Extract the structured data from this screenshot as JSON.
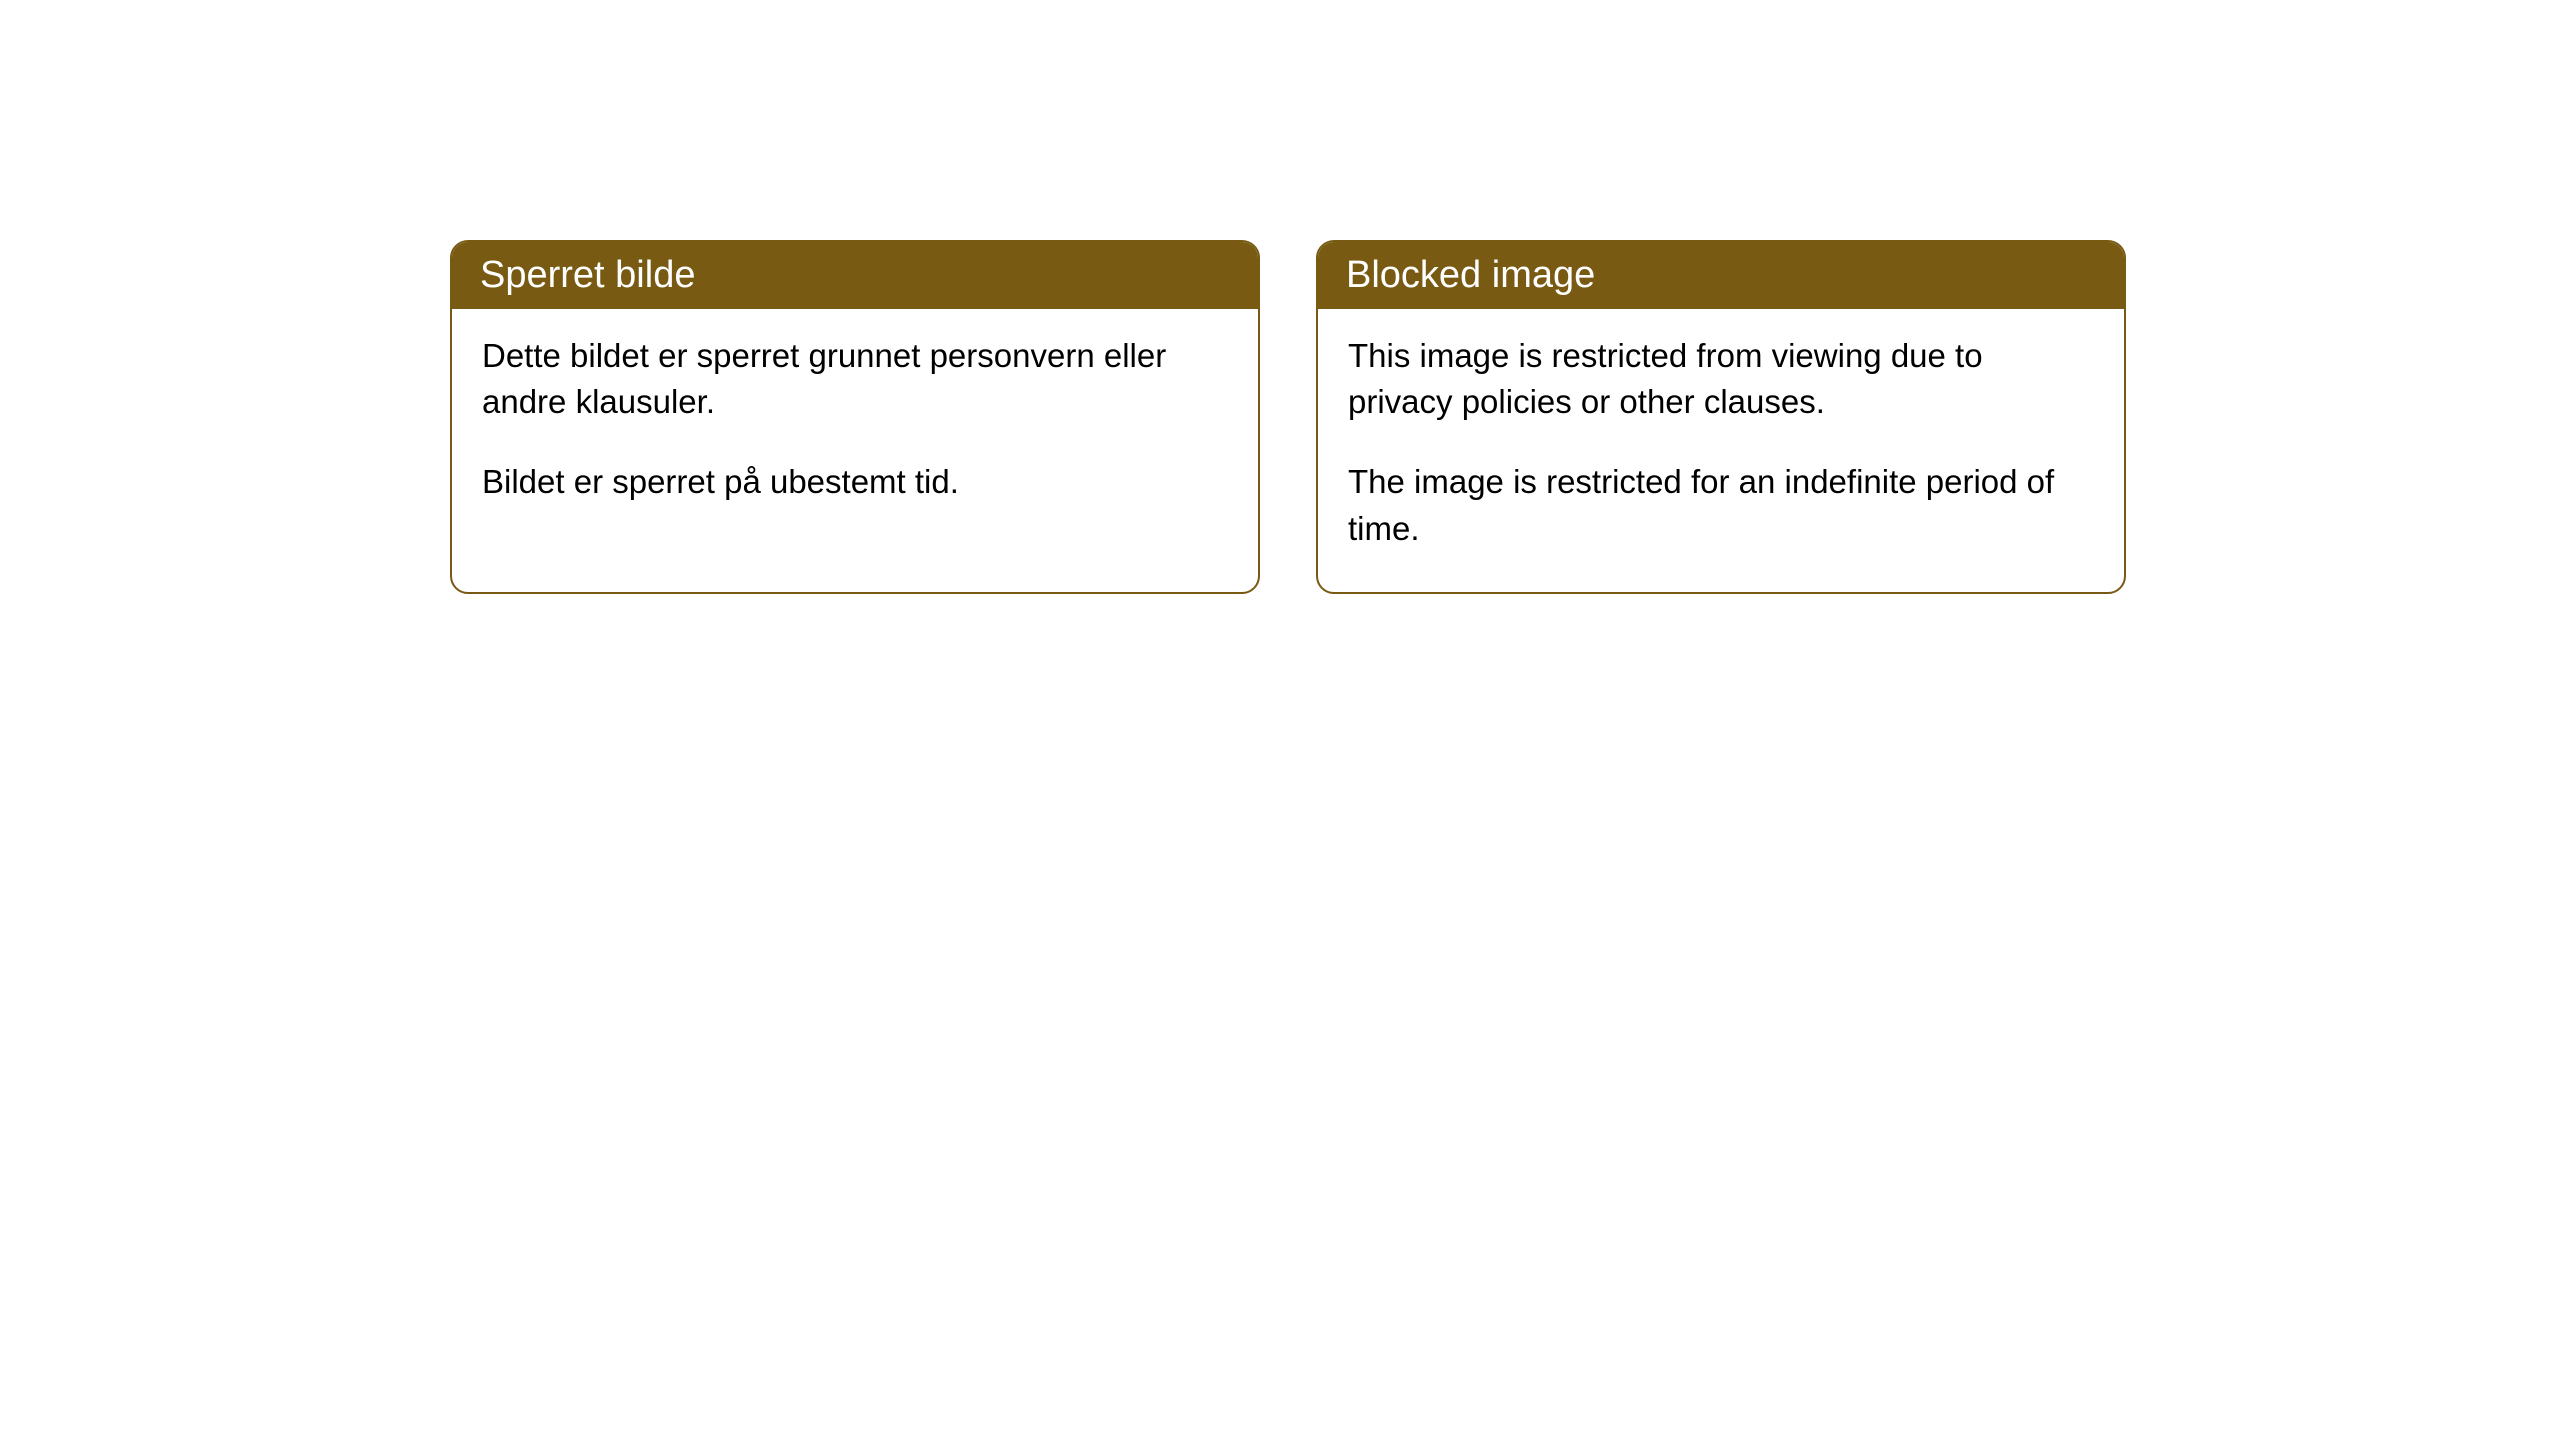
{
  "cards": [
    {
      "title": "Sperret bilde",
      "paragraph1": "Dette bildet er sperret grunnet personvern eller andre klausuler.",
      "paragraph2": "Bildet er sperret på ubestemt tid."
    },
    {
      "title": "Blocked image",
      "paragraph1": "This image is restricted from viewing due to privacy policies or other clauses.",
      "paragraph2": "The image is restricted for an indefinite period of time."
    }
  ],
  "styling": {
    "header_background": "#785a12",
    "header_text_color": "#ffffff",
    "border_color": "#785a12",
    "body_background": "#ffffff",
    "body_text_color": "#000000",
    "border_radius": 18,
    "title_fontsize": 38,
    "body_fontsize": 33
  }
}
